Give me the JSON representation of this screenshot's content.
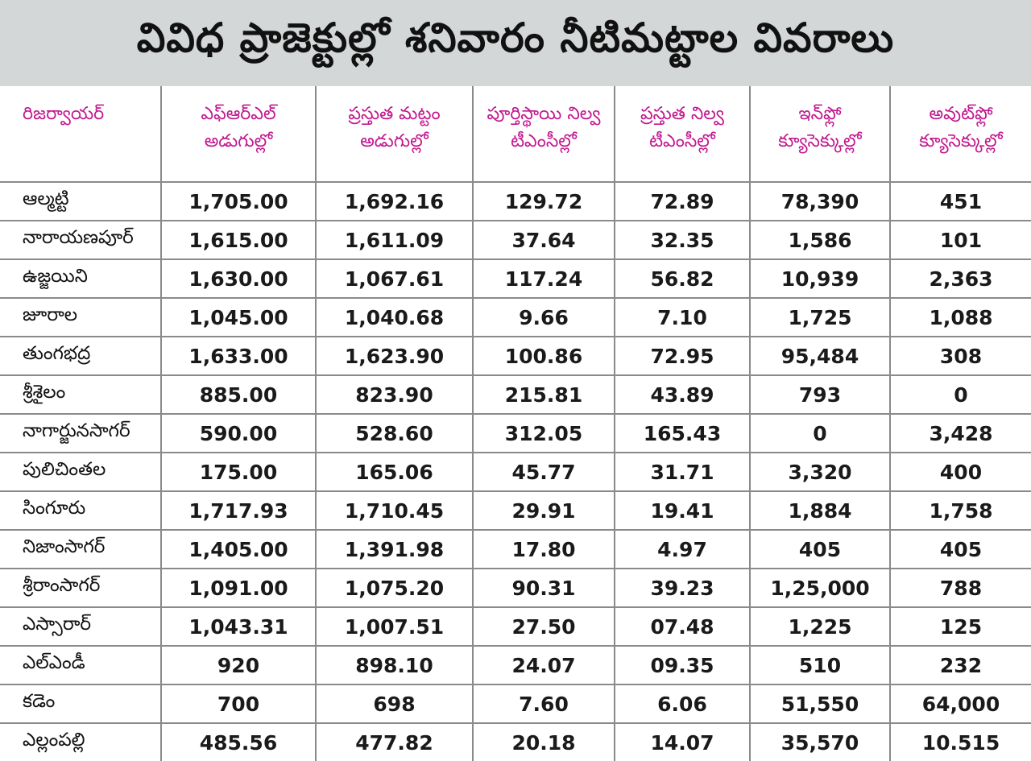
{
  "title": "వివిధ ప్రాజెక్టుల్లో  శనివారం నీటిమట్టాల వివరాలు",
  "chart_data": {
    "type": "table",
    "title": "వివిధ ప్రాజెక్టుల్లో  శనివారం నీటిమట్టాల వివరాలు",
    "headers": [
      [
        "రిజర్వాయర్"
      ],
      [
        "ఎఫ్‌ఆర్‌ఎల్",
        "అడుగుల్లో"
      ],
      [
        "ప్రస్తుత మట్టం",
        "అడుగుల్లో"
      ],
      [
        "పూర్తిస్థాయి నిల్వ",
        "టీఎంసీల్లో"
      ],
      [
        "ప్రస్తుత నిల్వ",
        "టీఎంసీల్లో"
      ],
      [
        "ఇన్‌ఫ్లో",
        "క్యూసెక్కుల్లో"
      ],
      [
        "అవుట్‌ఫ్లో",
        "క్యూసెక్కుల్లో"
      ]
    ],
    "rows": [
      [
        "ఆల్మట్టి",
        "1,705.00",
        "1,692.16",
        "129.72",
        "72.89",
        "78,390",
        "451"
      ],
      [
        "నారాయణపూర్",
        "1,615.00",
        "1,611.09",
        "37.64",
        "32.35",
        "1,586",
        "101"
      ],
      [
        "ఉజ్జయిని",
        "1,630.00",
        "1,067.61",
        "117.24",
        "56.82",
        "10,939",
        "2,363"
      ],
      [
        "జూరాల",
        "1,045.00",
        "1,040.68",
        "9.66",
        "7.10",
        "1,725",
        "1,088"
      ],
      [
        "తుంగభద్ర",
        "1,633.00",
        "1,623.90",
        "100.86",
        "72.95",
        "95,484",
        "308"
      ],
      [
        "శ్రీశైలం",
        "885.00",
        "823.90",
        "215.81",
        "43.89",
        "793",
        "0"
      ],
      [
        "నాగార్జునసాగర్",
        "590.00",
        "528.60",
        "312.05",
        "165.43",
        "0",
        "3,428"
      ],
      [
        "పులిచింతల",
        "175.00",
        "165.06",
        "45.77",
        "31.71",
        "3,320",
        "400"
      ],
      [
        "సింగూరు",
        "1,717.93",
        "1,710.45",
        "29.91",
        "19.41",
        "1,884",
        "1,758"
      ],
      [
        "నిజాంసాగర్",
        "1,405.00",
        "1,391.98",
        "17.80",
        "4.97",
        "405",
        "405"
      ],
      [
        "శ్రీరాంసాగర్",
        "1,091.00",
        "1,075.20",
        "90.31",
        "39.23",
        "1,25,000",
        "788"
      ],
      [
        "ఎస్సారార్",
        "1,043.31",
        "1,007.51",
        "27.50",
        "07.48",
        "1,225",
        "125"
      ],
      [
        "ఎల్ఎండీ",
        "920",
        "898.10",
        "24.07",
        "09.35",
        "510",
        "232"
      ],
      [
        "కడెం",
        "700",
        "698",
        "7.60",
        "6.06",
        "51,550",
        "64,000"
      ],
      [
        "ఎల్లంపల్లి",
        "485.56",
        "477.82",
        "20.18",
        "14.07",
        "35,570",
        "10.515"
      ]
    ]
  },
  "colors": {
    "title_background": "#d3d7d8",
    "header_text": "#c2188f",
    "body_text": "#1a1a1a",
    "rule": "#8a8a8a"
  }
}
